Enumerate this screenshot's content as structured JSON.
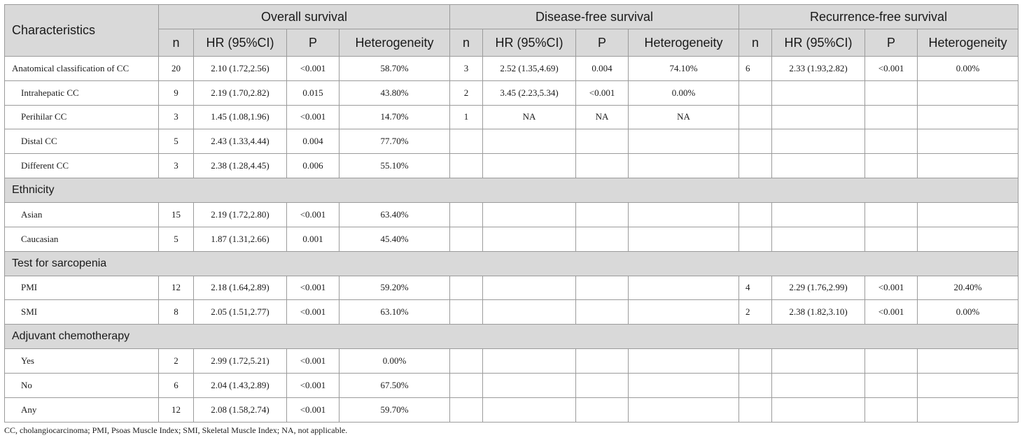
{
  "header": {
    "characteristics": "Characteristics",
    "groups": [
      "Overall survival",
      "Disease-free survival",
      "Recurrence-free survival"
    ],
    "subcols": [
      "n",
      "HR (95%CI)",
      "P",
      "Heterogeneity"
    ]
  },
  "sections": [
    {
      "title": "",
      "rows": [
        {
          "label": "Anatomical classification of CC",
          "indent": false,
          "os": [
            "20",
            "2.10 (1.72,2.56)",
            "<0.001",
            "58.70%"
          ],
          "dfs": [
            "3",
            "2.52 (1.35,4.69)",
            "0.004",
            "74.10%"
          ],
          "rfs": [
            "6",
            "2.33 (1.93,2.82)",
            "<0.001",
            "0.00%"
          ]
        },
        {
          "label": "Intrahepatic CC",
          "indent": true,
          "os": [
            "9",
            "2.19 (1.70,2.82)",
            "0.015",
            "43.80%"
          ],
          "dfs": [
            "2",
            "3.45 (2.23,5.34)",
            "<0.001",
            "0.00%"
          ],
          "rfs": [
            "",
            "",
            "",
            ""
          ]
        },
        {
          "label": "Perihilar CC",
          "indent": true,
          "os": [
            "3",
            "1.45 (1.08,1.96)",
            "<0.001",
            "14.70%"
          ],
          "dfs": [
            "1",
            "NA",
            "NA",
            "NA"
          ],
          "rfs": [
            "",
            "",
            "",
            ""
          ]
        },
        {
          "label": "Distal CC",
          "indent": true,
          "os": [
            "5",
            "2.43 (1.33,4.44)",
            "0.004",
            "77.70%"
          ],
          "dfs": [
            "",
            "",
            "",
            ""
          ],
          "rfs": [
            "",
            "",
            "",
            ""
          ]
        },
        {
          "label": "Different CC",
          "indent": true,
          "os": [
            "3",
            "2.38 (1.28,4.45)",
            "0.006",
            "55.10%"
          ],
          "dfs": [
            "",
            "",
            "",
            ""
          ],
          "rfs": [
            "",
            "",
            "",
            ""
          ]
        }
      ]
    },
    {
      "title": "Ethnicity",
      "rows": [
        {
          "label": "Asian",
          "indent": true,
          "os": [
            "15",
            "2.19 (1.72,2.80)",
            "<0.001",
            "63.40%"
          ],
          "dfs": [
            "",
            "",
            "",
            ""
          ],
          "rfs": [
            "",
            "",
            "",
            ""
          ]
        },
        {
          "label": "Caucasian",
          "indent": true,
          "os": [
            "5",
            "1.87 (1.31,2.66)",
            "0.001",
            "45.40%"
          ],
          "dfs": [
            "",
            "",
            "",
            ""
          ],
          "rfs": [
            "",
            "",
            "",
            ""
          ]
        }
      ]
    },
    {
      "title": "Test for sarcopenia",
      "rows": [
        {
          "label": "PMI",
          "indent": true,
          "os": [
            "12",
            "2.18 (1.64,2.89)",
            "<0.001",
            "59.20%"
          ],
          "dfs": [
            "",
            "",
            "",
            ""
          ],
          "rfs": [
            "4",
            "2.29 (1.76,2.99)",
            "<0.001",
            "20.40%"
          ]
        },
        {
          "label": "SMI",
          "indent": true,
          "os": [
            "8",
            "2.05 (1.51,2.77)",
            "<0.001",
            "63.10%"
          ],
          "dfs": [
            "",
            "",
            "",
            ""
          ],
          "rfs": [
            "2",
            "2.38 (1.82,3.10)",
            "<0.001",
            "0.00%"
          ]
        }
      ]
    },
    {
      "title": "Adjuvant chemotherapy",
      "rows": [
        {
          "label": "Yes",
          "indent": true,
          "os": [
            "2",
            "2.99 (1.72,5.21)",
            "<0.001",
            "0.00%"
          ],
          "dfs": [
            "",
            "",
            "",
            ""
          ],
          "rfs": [
            "",
            "",
            "",
            ""
          ]
        },
        {
          "label": "No",
          "indent": true,
          "os": [
            "6",
            "2.04 (1.43,2.89)",
            "<0.001",
            "67.50%"
          ],
          "dfs": [
            "",
            "",
            "",
            ""
          ],
          "rfs": [
            "",
            "",
            "",
            ""
          ]
        },
        {
          "label": "Any",
          "indent": true,
          "os": [
            "12",
            "2.08 (1.58,2.74)",
            "<0.001",
            "59.70%"
          ],
          "dfs": [
            "",
            "",
            "",
            ""
          ],
          "rfs": [
            "",
            "",
            "",
            ""
          ]
        }
      ]
    }
  ],
  "footnote": "CC, cholangiocarcinoma; PMI, Psoas Muscle Index; SMI, Skeletal Muscle Index; NA, not applicable."
}
